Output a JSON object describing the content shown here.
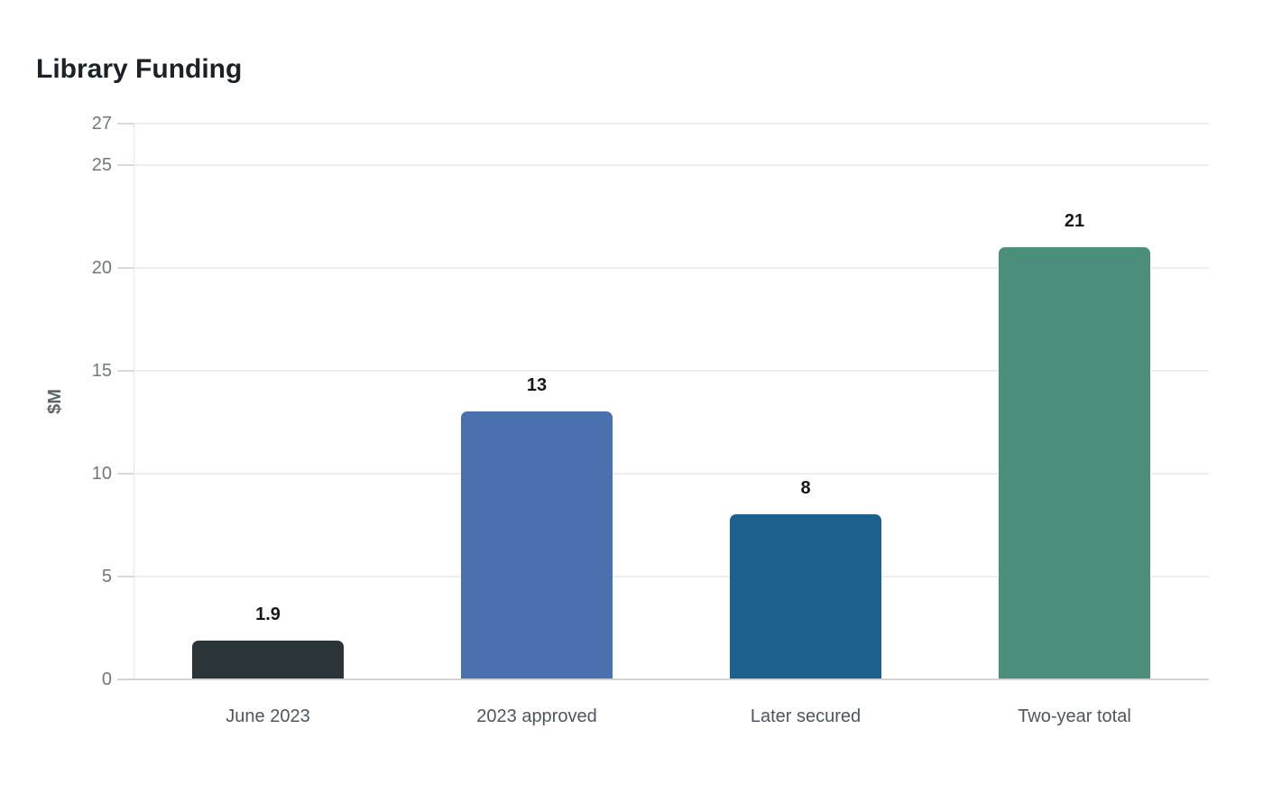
{
  "title": "Library Funding",
  "chart_data": {
    "type": "bar",
    "title": "Library Funding",
    "categories": [
      "June 2023",
      "2023 approved",
      "Later secured",
      "Two-year total"
    ],
    "values": [
      1.9,
      13,
      8,
      21
    ],
    "value_labels": [
      "1.9",
      "13",
      "8",
      "21"
    ],
    "bar_colors": [
      "#2b3438",
      "#4a70ad",
      "#1d618e",
      "#4c8e7c"
    ],
    "xlabel": "",
    "ylabel": "$M",
    "ylim": [
      0,
      27
    ],
    "yticks": [
      0,
      5,
      10,
      15,
      20,
      25,
      27
    ],
    "grid": "horizontal",
    "legend": "none"
  },
  "colors": {
    "background": "#ffffff",
    "title_text": "#1a2127",
    "axis_title_text": "#5c666b",
    "tick_label_text": "#6f797d",
    "category_label_text": "#4d565e",
    "value_label_text": "#15181b",
    "gridline": "#ededed",
    "tick_mark": "#d9d9d9",
    "axis_line": "#d4d4d4",
    "y_axis_dotted": "#d6d6d6"
  }
}
